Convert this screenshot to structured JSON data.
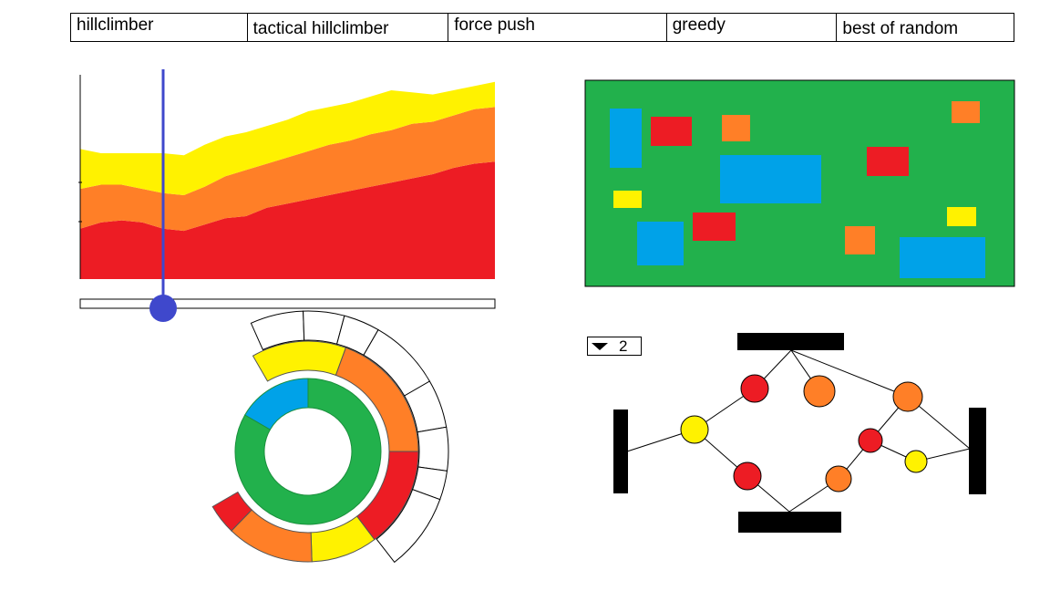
{
  "tabs": [
    {
      "id": "hillclimber",
      "label": "hillclimber"
    },
    {
      "id": "tactical-hillclimber",
      "label": "tactical hillclimber"
    },
    {
      "id": "force-push",
      "label": "force push"
    },
    {
      "id": "greedy",
      "label": "greedy"
    },
    {
      "id": "best-of-random",
      "label": "best of random"
    }
  ],
  "colors": {
    "red": "#ed1c24",
    "orange": "#ff7f27",
    "yellow": "#fff200",
    "green": "#22b14c",
    "blue": "#00a2e8",
    "slider": "#3f48cc",
    "black": "#000000"
  },
  "timeline": {
    "position": 0.2
  },
  "graph_selector": {
    "value": "2"
  },
  "chart_data": {
    "type": "area",
    "stacked": true,
    "title": "",
    "xlabel": "",
    "ylabel": "",
    "y_ticks_labeled": false,
    "x": [
      0,
      1,
      2,
      3,
      4,
      5,
      6,
      7,
      8,
      9,
      10,
      11,
      12,
      13,
      14,
      15,
      16,
      17,
      18,
      19,
      20
    ],
    "series": [
      {
        "color": "red",
        "values": [
          24,
          27,
          28,
          27,
          24,
          23,
          26,
          29,
          30,
          34,
          36,
          38,
          40,
          42,
          44,
          46,
          48,
          50,
          53,
          55,
          56
        ]
      },
      {
        "color": "orange",
        "values": [
          19,
          18,
          17,
          16,
          17,
          17,
          18,
          20,
          22,
          21,
          22,
          23,
          24,
          24,
          25,
          25,
          26,
          25,
          25,
          26,
          26
        ]
      },
      {
        "color": "yellow",
        "values": [
          19,
          15,
          15,
          17,
          19,
          19,
          20,
          19,
          18,
          18,
          18,
          19,
          18,
          18,
          18,
          19,
          15,
          13,
          12,
          11,
          12
        ]
      }
    ],
    "ylim": [
      0,
      100
    ]
  }
}
